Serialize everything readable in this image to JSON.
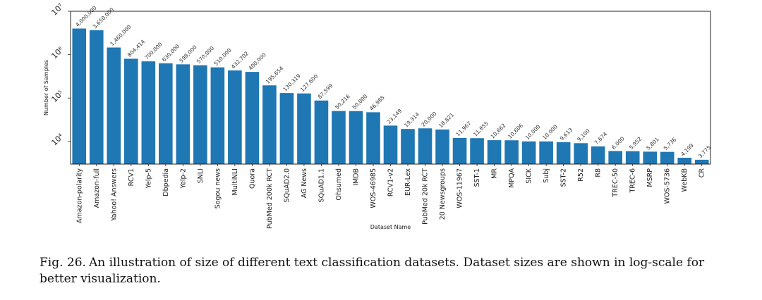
{
  "chart_data": {
    "type": "bar",
    "title": "",
    "xlabel": "Dataset Name",
    "ylabel": "Number of Samples",
    "yscale": "log",
    "ylim": [
      3000,
      10000000
    ],
    "yticks": [
      {
        "value": 10000,
        "label": "10⁴"
      },
      {
        "value": 100000,
        "label": "10⁵"
      },
      {
        "value": 1000000,
        "label": "10⁶"
      },
      {
        "value": 10000000,
        "label": "10⁷"
      }
    ],
    "bar_color": "#1f77b4",
    "grid": false,
    "categories": [
      "Amazon-polarity",
      "Amazon-full",
      "Yahoo! Answers",
      "RCV1",
      "Yelp-5",
      "Dbpedia",
      "Yelp-2",
      "SNLI",
      "Sogou news",
      "MultiNLI",
      "Quora",
      "PubMed 200k RCT",
      "SQuAD2.0",
      "AG News",
      "SQuAD1.1",
      "Ohsumed",
      "IMDB",
      "WOS-46985",
      "RCV1-v2",
      "EUR-Lex",
      "PubMed 20k RCT",
      "20 Newsgroups",
      "WOS-11967",
      "SST-1",
      "MR",
      "MPQA",
      "SICK",
      "Subj",
      "SST-2",
      "R52",
      "R8",
      "TREC-50",
      "TREC-6",
      "MSRP",
      "WOS-5736",
      "WebKB",
      "CR"
    ],
    "values": [
      4000000,
      3650000,
      1460000,
      804414,
      700000,
      630000,
      598000,
      570000,
      510000,
      432702,
      400000,
      195654,
      130319,
      127600,
      87599,
      50216,
      50000,
      46985,
      23149,
      19314,
      20000,
      18821,
      11967,
      11855,
      10662,
      10606,
      10000,
      10000,
      9613,
      9100,
      7674,
      6000,
      5952,
      5801,
      5736,
      4199,
      3775
    ],
    "data_labels": [
      "4,000,000",
      "3,650,000",
      "1,460,000",
      "804,414",
      "700,000",
      "630,000",
      "598,000",
      "570,000",
      "510,000",
      "432,702",
      "400,000",
      "195,654",
      "130,319",
      "127,600",
      "87,599",
      "50,216",
      "50,000",
      "46,985",
      "23,149",
      "19,314",
      "20,000",
      "18,821",
      "11,967",
      "11,855",
      "10,662",
      "10,606",
      "10,000",
      "10,000",
      "9,613",
      "9,100",
      "7,674",
      "6,000",
      "5,952",
      "5,801",
      "5,736",
      "4,199",
      "3,775"
    ]
  },
  "caption": {
    "label": "Fig. 26.",
    "text": "An illustration of size of different text classification datasets. Dataset sizes are shown in log-scale for better visualization."
  }
}
